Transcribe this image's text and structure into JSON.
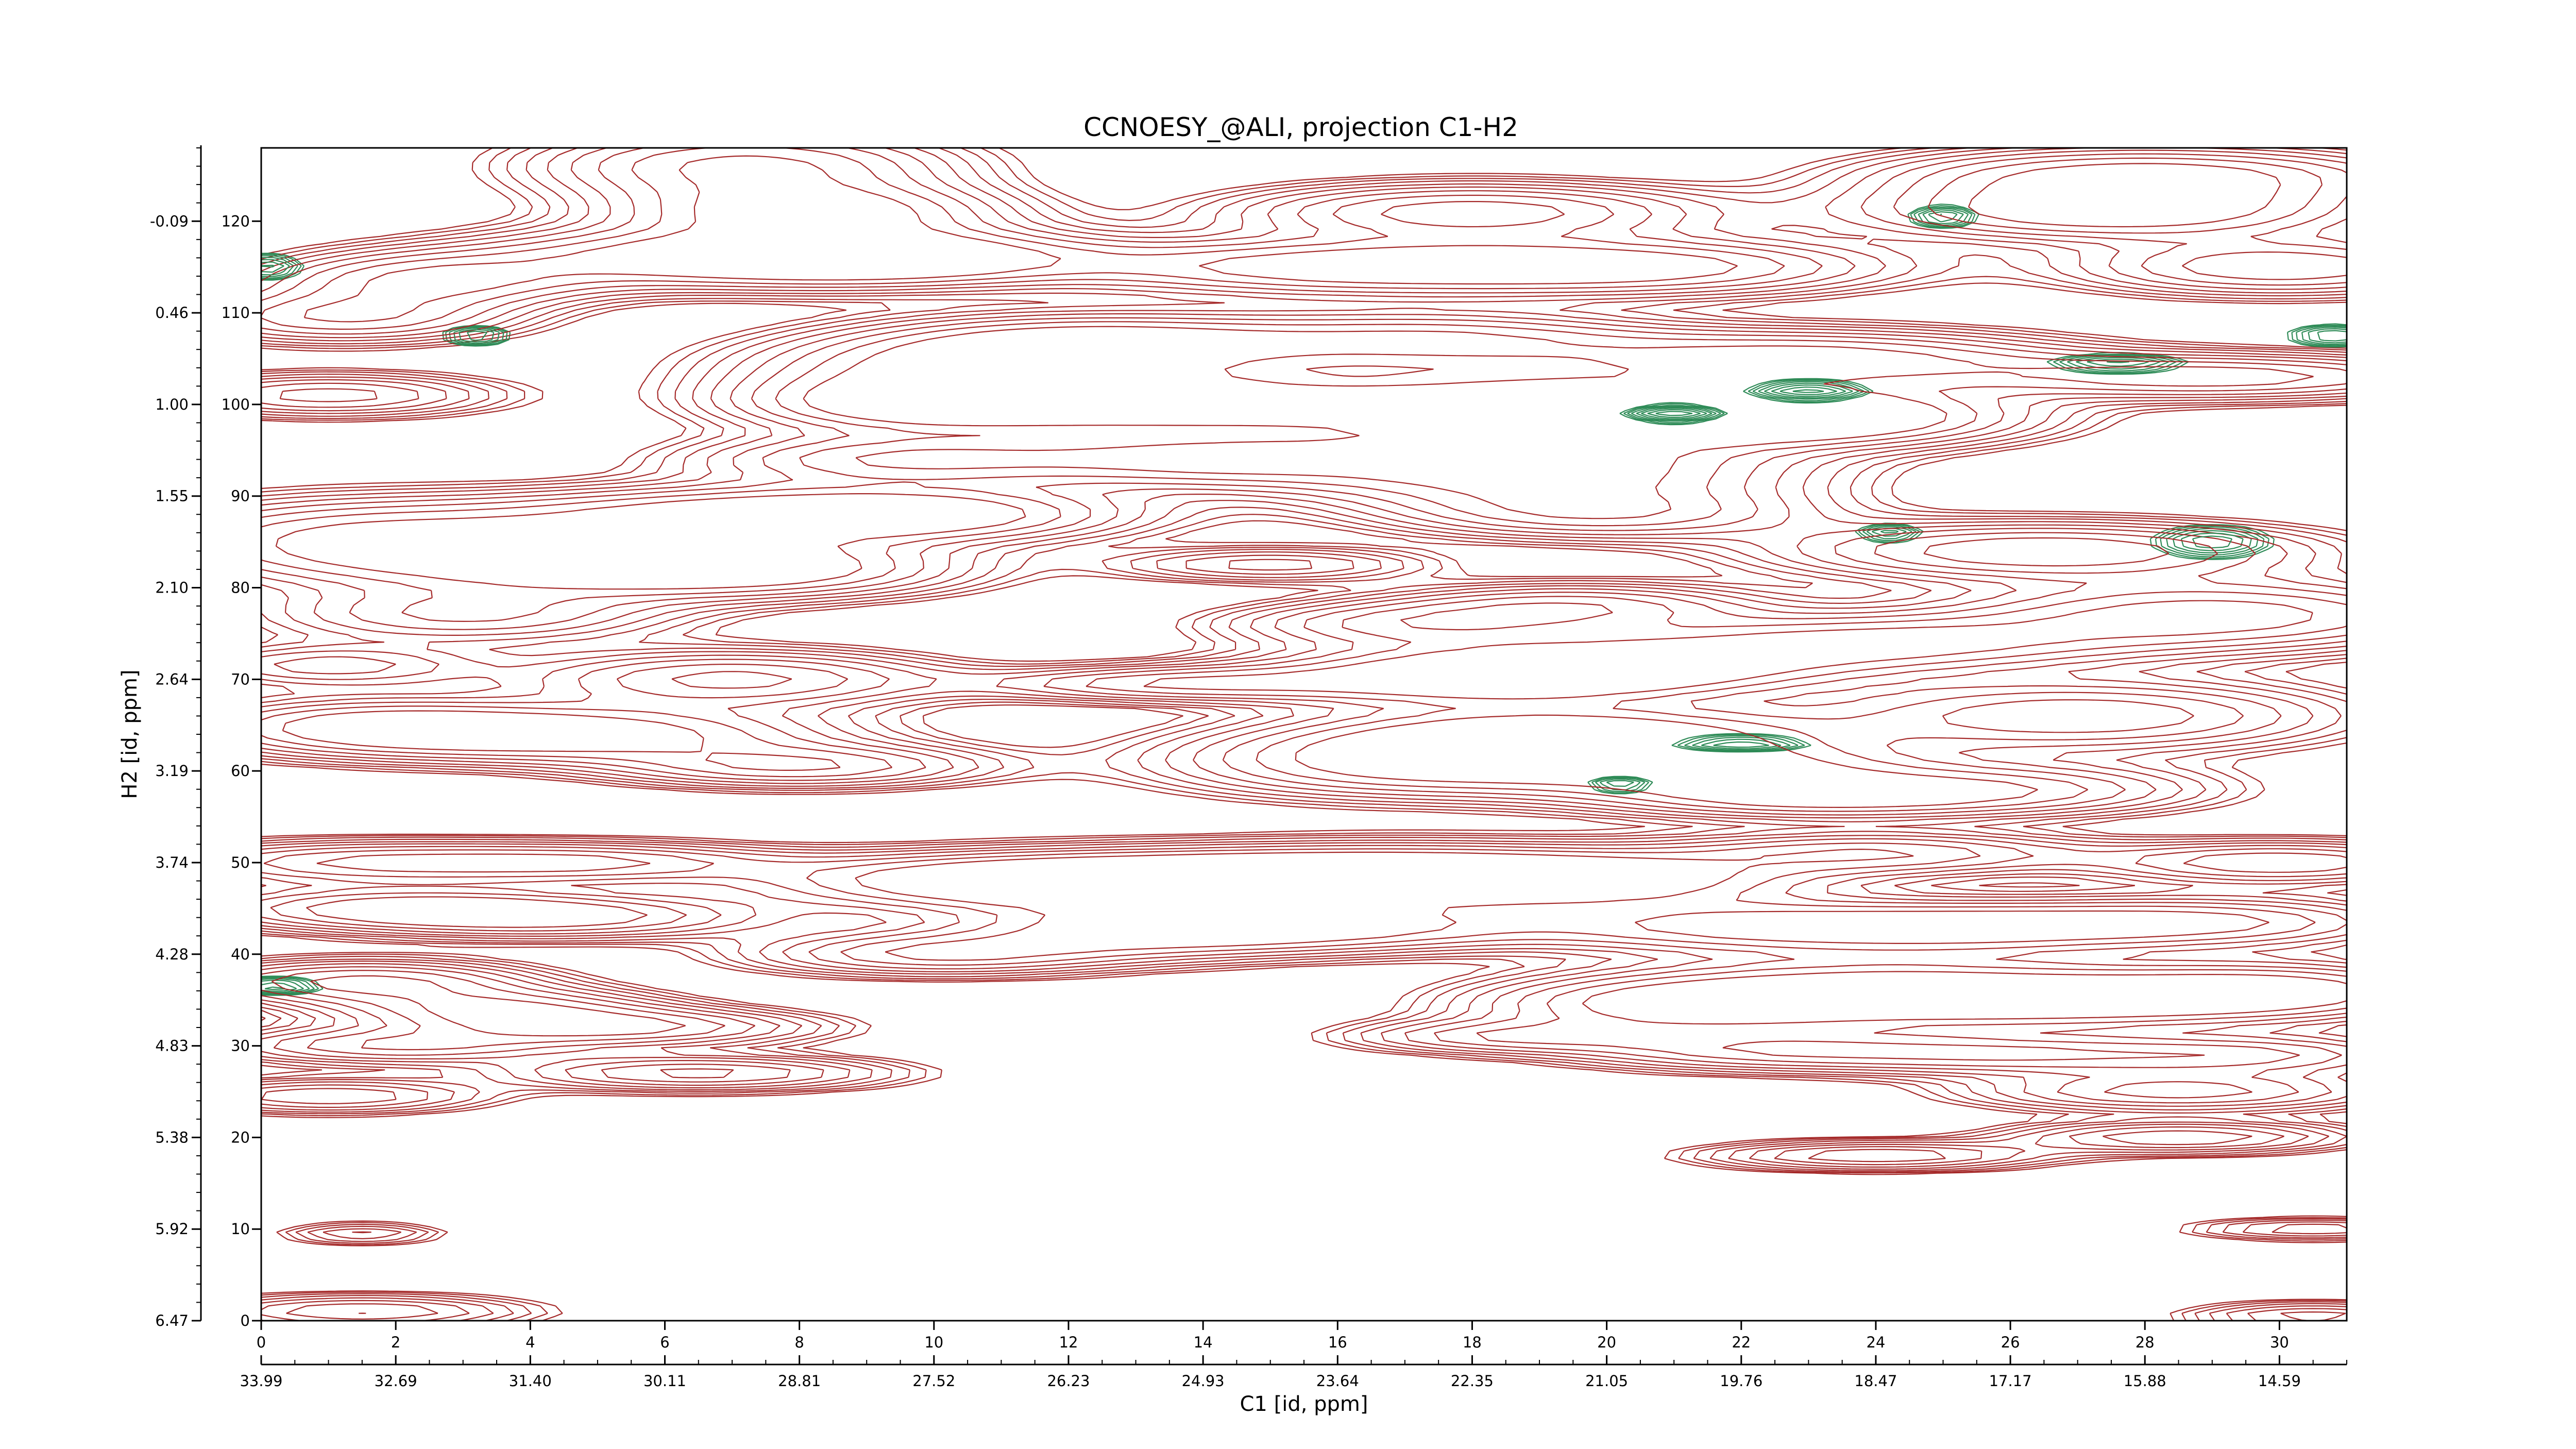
{
  "chart_data": {
    "type": "contour",
    "title": "CCNOESY_@ALI, projection C1-H2",
    "xlabel": "C1 [id, ppm]",
    "ylabel": "H2 [id, ppm]",
    "x_index_range": [
      0,
      31
    ],
    "y_index_range": [
      0,
      128
    ],
    "x_index_ticks": [
      "0",
      "2",
      "4",
      "6",
      "8",
      "10",
      "12",
      "14",
      "16",
      "18",
      "20",
      "22",
      "24",
      "26",
      "28",
      "30"
    ],
    "x_ppm_ticks": [
      "33.99",
      "32.69",
      "31.40",
      "30.11",
      "28.81",
      "27.52",
      "26.23",
      "24.93",
      "23.64",
      "22.35",
      "21.05",
      "19.76",
      "18.47",
      "17.17",
      "15.88",
      "14.59"
    ],
    "y_index_ticks": [
      "0",
      "10",
      "20",
      "30",
      "40",
      "50",
      "60",
      "70",
      "80",
      "90",
      "100",
      "110",
      "120"
    ],
    "y_ppm_ticks": [
      "6.47",
      "5.92",
      "5.38",
      "4.83",
      "4.28",
      "3.74",
      "3.19",
      "2.64",
      "2.10",
      "1.55",
      "1.00",
      "0.46",
      "-0.09"
    ],
    "colors": {
      "positive": "#a52a2a",
      "negative": "#2e8b57"
    },
    "levels": 9,
    "peaks": [
      {
        "x": 1.2,
        "y": 109.5,
        "sx": 1.6,
        "sy": 1.8,
        "sign": 1,
        "amp": 0.5
      },
      {
        "x": 2.5,
        "y": 113.5,
        "sx": 1.6,
        "sy": 2.0,
        "sign": 1,
        "amp": 0.5
      },
      {
        "x": 1.0,
        "y": 101.0,
        "sx": 1.6,
        "sy": 1.5,
        "sign": 1,
        "amp": 0.45
      },
      {
        "x": 7.2,
        "y": 126.0,
        "sx": 2.0,
        "sy": 2.6,
        "sign": 1,
        "amp": 0.55
      },
      {
        "x": 8.2,
        "y": 121.0,
        "sx": 1.8,
        "sy": 2.0,
        "sign": 1,
        "amp": 0.6
      },
      {
        "x": 6.8,
        "y": 116.0,
        "sx": 2.5,
        "sy": 2.2,
        "sign": 1,
        "amp": 0.6
      },
      {
        "x": 9.5,
        "y": 116.0,
        "sx": 2.0,
        "sy": 2.0,
        "sign": 1,
        "amp": 0.55
      },
      {
        "x": 9.7,
        "y": 100.0,
        "sx": 1.8,
        "sy": 2.0,
        "sign": 1,
        "amp": 0.55
      },
      {
        "x": 11.0,
        "y": 104.0,
        "sx": 2.4,
        "sy": 2.5,
        "sign": 1,
        "amp": 0.6
      },
      {
        "x": 13.5,
        "y": 100.0,
        "sx": 2.4,
        "sy": 2.0,
        "sign": 1,
        "amp": 0.6
      },
      {
        "x": 12.5,
        "y": 107.0,
        "sx": 2.2,
        "sy": 2.0,
        "sign": 1,
        "amp": 0.5
      },
      {
        "x": 14.0,
        "y": 94.0,
        "sx": 2.0,
        "sy": 2.0,
        "sign": 1,
        "amp": 0.5
      },
      {
        "x": 9.5,
        "y": 94.0,
        "sx": 2.0,
        "sy": 1.8,
        "sign": 1,
        "amp": 0.5
      },
      {
        "x": 7.0,
        "y": 88.0,
        "sx": 2.4,
        "sy": 2.0,
        "sign": 1,
        "amp": 0.55
      },
      {
        "x": 10.0,
        "y": 88.0,
        "sx": 2.0,
        "sy": 2.0,
        "sign": 1,
        "amp": 0.5
      },
      {
        "x": 5.0,
        "y": 83.0,
        "sx": 2.2,
        "sy": 2.5,
        "sign": 1,
        "amp": 0.55
      },
      {
        "x": 1.5,
        "y": 85.0,
        "sx": 2.2,
        "sy": 3.0,
        "sign": 1,
        "amp": 0.55
      },
      {
        "x": 7.5,
        "y": 82.0,
        "sx": 2.0,
        "sy": 2.0,
        "sign": 1,
        "amp": 0.5
      },
      {
        "x": 3.0,
        "y": 77.0,
        "sx": 2.0,
        "sy": 2.0,
        "sign": 1,
        "amp": 0.4
      },
      {
        "x": 18.0,
        "y": 121.0,
        "sx": 2.2,
        "sy": 2.0,
        "sign": 1,
        "amp": 0.6
      },
      {
        "x": 16.0,
        "y": 115.0,
        "sx": 2.6,
        "sy": 2.0,
        "sign": 1,
        "amp": 0.6
      },
      {
        "x": 20.5,
        "y": 115.0,
        "sx": 2.4,
        "sy": 2.0,
        "sign": 1,
        "amp": 0.55
      },
      {
        "x": 17.5,
        "y": 107.0,
        "sx": 2.2,
        "sy": 2.0,
        "sign": 1,
        "amp": 0.5
      },
      {
        "x": 18.5,
        "y": 100.0,
        "sx": 2.2,
        "sy": 2.5,
        "sign": 1,
        "amp": 0.55
      },
      {
        "x": 19.0,
        "y": 93.0,
        "sx": 2.5,
        "sy": 3.0,
        "sign": 1,
        "amp": 0.65
      },
      {
        "x": 23.0,
        "y": 105.0,
        "sx": 2.5,
        "sy": 2.0,
        "sign": 1,
        "amp": 0.6
      },
      {
        "x": 21.5,
        "y": 99.0,
        "sx": 2.0,
        "sy": 2.0,
        "sign": 1,
        "amp": 0.6
      },
      {
        "x": 23.5,
        "y": 98.5,
        "sx": 2.0,
        "sy": 2.0,
        "sign": 1,
        "amp": 0.5
      },
      {
        "x": 20.0,
        "y": 88.0,
        "sx": 2.0,
        "sy": 1.8,
        "sign": 1,
        "amp": 0.4
      },
      {
        "x": 28.0,
        "y": 125.0,
        "sx": 2.5,
        "sy": 2.0,
        "sign": 1,
        "amp": 0.6
      },
      {
        "x": 27.5,
        "y": 121.0,
        "sx": 2.4,
        "sy": 2.0,
        "sign": 1,
        "amp": 0.65
      },
      {
        "x": 30.0,
        "y": 115.0,
        "sx": 2.0,
        "sy": 2.0,
        "sign": 1,
        "amp": 0.5
      },
      {
        "x": 29.0,
        "y": 103.0,
        "sx": 2.5,
        "sy": 1.6,
        "sign": 1,
        "amp": 0.6
      },
      {
        "x": 26.5,
        "y": 84.0,
        "sx": 2.5,
        "sy": 2.0,
        "sign": 1,
        "amp": 0.65
      },
      {
        "x": 29.0,
        "y": 77.0,
        "sx": 2.5,
        "sy": 2.5,
        "sign": 1,
        "amp": 0.6
      },
      {
        "x": 24.0,
        "y": 74.0,
        "sx": 2.5,
        "sy": 2.0,
        "sign": 1,
        "amp": 0.55
      },
      {
        "x": 27.0,
        "y": 66.0,
        "sx": 2.5,
        "sy": 2.5,
        "sign": 1,
        "amp": 0.5
      },
      {
        "x": 26.0,
        "y": 58.0,
        "sx": 2.0,
        "sy": 1.8,
        "sign": 1,
        "amp": 0.4
      },
      {
        "x": 19.5,
        "y": 78.0,
        "sx": 1.8,
        "sy": 1.6,
        "sign": 1,
        "amp": 0.45
      },
      {
        "x": 17.0,
        "y": 76.0,
        "sx": 1.8,
        "sy": 1.6,
        "sign": 1,
        "amp": 0.4
      },
      {
        "x": 15.0,
        "y": 82.5,
        "sx": 1.5,
        "sy": 1.2,
        "sign": 1,
        "amp": 0.35
      },
      {
        "x": 18.0,
        "y": 70.0,
        "sx": 2.4,
        "sy": 2.0,
        "sign": 1,
        "amp": 0.55
      },
      {
        "x": 20.0,
        "y": 71.5,
        "sx": 2.4,
        "sy": 2.0,
        "sign": 1,
        "amp": 0.55
      },
      {
        "x": 19.5,
        "y": 64.0,
        "sx": 2.4,
        "sy": 2.0,
        "sign": 1,
        "amp": 0.6
      },
      {
        "x": 17.5,
        "y": 61.0,
        "sx": 2.5,
        "sy": 2.5,
        "sign": 1,
        "amp": 0.65
      },
      {
        "x": 22.0,
        "y": 60.0,
        "sx": 2.0,
        "sy": 2.0,
        "sign": 1,
        "amp": 0.45
      },
      {
        "x": 23.0,
        "y": 57.0,
        "sx": 2.0,
        "sy": 1.5,
        "sign": 1,
        "amp": 0.45
      },
      {
        "x": 13.5,
        "y": 69.5,
        "sx": 1.8,
        "sy": 1.2,
        "sign": 1,
        "amp": 0.45
      },
      {
        "x": 1.5,
        "y": 65.0,
        "sx": 1.8,
        "sy": 2.0,
        "sign": 1,
        "amp": 0.45
      },
      {
        "x": 4.5,
        "y": 64.0,
        "sx": 2.5,
        "sy": 2.0,
        "sign": 1,
        "amp": 0.65
      },
      {
        "x": 7.0,
        "y": 70.0,
        "sx": 2.0,
        "sy": 2.0,
        "sign": 1,
        "amp": 0.55
      },
      {
        "x": 8.0,
        "y": 60.5,
        "sx": 1.8,
        "sy": 1.5,
        "sign": 1,
        "amp": 0.5
      },
      {
        "x": 1.0,
        "y": 71.5,
        "sx": 1.5,
        "sy": 1.5,
        "sign": 1,
        "amp": 0.35
      },
      {
        "x": 1.5,
        "y": 50.0,
        "sx": 2.0,
        "sy": 1.5,
        "sign": 1,
        "amp": 0.5
      },
      {
        "x": 5.0,
        "y": 50.0,
        "sx": 1.8,
        "sy": 1.4,
        "sign": 1,
        "amp": 0.45
      },
      {
        "x": 2.0,
        "y": 45.0,
        "sx": 2.0,
        "sy": 1.5,
        "sign": 1,
        "amp": 0.55
      },
      {
        "x": 4.5,
        "y": 44.0,
        "sx": 2.0,
        "sy": 1.5,
        "sign": 1,
        "amp": 0.5
      },
      {
        "x": 11.0,
        "y": 48.0,
        "sx": 2.5,
        "sy": 2.0,
        "sign": 1,
        "amp": 0.6
      },
      {
        "x": 14.0,
        "y": 48.0,
        "sx": 2.5,
        "sy": 2.0,
        "sign": 1,
        "amp": 0.6
      },
      {
        "x": 17.0,
        "y": 49.0,
        "sx": 2.5,
        "sy": 2.0,
        "sign": 1,
        "amp": 0.6
      },
      {
        "x": 20.0,
        "y": 48.0,
        "sx": 2.2,
        "sy": 2.0,
        "sign": 1,
        "amp": 0.5
      },
      {
        "x": 10.0,
        "y": 40.0,
        "sx": 1.8,
        "sy": 1.5,
        "sign": 1,
        "amp": 0.5
      },
      {
        "x": 13.0,
        "y": 42.5,
        "sx": 2.0,
        "sy": 2.0,
        "sign": 1,
        "amp": 0.5
      },
      {
        "x": 16.0,
        "y": 43.0,
        "sx": 2.2,
        "sy": 1.8,
        "sign": 1,
        "amp": 0.5
      },
      {
        "x": 24.0,
        "y": 51.0,
        "sx": 2.0,
        "sy": 1.5,
        "sign": 1,
        "amp": 0.5
      },
      {
        "x": 22.0,
        "y": 43.0,
        "sx": 2.2,
        "sy": 1.8,
        "sign": 1,
        "amp": 0.5
      },
      {
        "x": 25.5,
        "y": 43.0,
        "sx": 2.0,
        "sy": 1.8,
        "sign": 1,
        "amp": 0.5
      },
      {
        "x": 29.0,
        "y": 43.5,
        "sx": 2.0,
        "sy": 1.8,
        "sign": 1,
        "amp": 0.5
      },
      {
        "x": 30.0,
        "y": 50.0,
        "sx": 1.8,
        "sy": 1.5,
        "sign": 1,
        "amp": 0.5
      },
      {
        "x": 24.0,
        "y": 36.0,
        "sx": 2.5,
        "sy": 2.5,
        "sign": 1,
        "amp": 0.55
      },
      {
        "x": 21.0,
        "y": 34.5,
        "sx": 2.0,
        "sy": 2.0,
        "sign": 1,
        "amp": 0.5
      },
      {
        "x": 27.0,
        "y": 35.0,
        "sx": 2.2,
        "sy": 2.0,
        "sign": 1,
        "amp": 0.5
      },
      {
        "x": 30.0,
        "y": 36.0,
        "sx": 1.8,
        "sy": 2.0,
        "sign": 1,
        "amp": 0.55
      },
      {
        "x": 22.5,
        "y": 29.5,
        "sx": 2.0,
        "sy": 1.5,
        "sign": 1,
        "amp": 0.45
      },
      {
        "x": 26.0,
        "y": 29.0,
        "sx": 1.8,
        "sy": 1.4,
        "sign": 1,
        "amp": 0.4
      },
      {
        "x": 29.5,
        "y": 29.0,
        "sx": 1.8,
        "sy": 1.4,
        "sign": 1,
        "amp": 0.4
      },
      {
        "x": 28.5,
        "y": 25.0,
        "sx": 2.0,
        "sy": 1.4,
        "sign": 1,
        "amp": 0.45
      },
      {
        "x": 18.5,
        "y": 31.0,
        "sx": 1.6,
        "sy": 1.2,
        "sign": 1,
        "amp": 0.35
      },
      {
        "x": 1.5,
        "y": 37.0,
        "sx": 1.6,
        "sy": 1.5,
        "sign": 1,
        "amp": 0.55
      },
      {
        "x": 3.5,
        "y": 34.0,
        "sx": 1.6,
        "sy": 1.5,
        "sign": 1,
        "amp": 0.5
      },
      {
        "x": 5.5,
        "y": 32.0,
        "sx": 1.8,
        "sy": 1.3,
        "sign": 1,
        "amp": 0.5
      },
      {
        "x": 2.0,
        "y": 30.0,
        "sx": 1.8,
        "sy": 1.3,
        "sign": 1,
        "amp": 0.4
      },
      {
        "x": 6.5,
        "y": 27.0,
        "sx": 1.8,
        "sy": 1.2,
        "sign": 1,
        "amp": 0.55
      },
      {
        "x": 1.0,
        "y": 24.5,
        "sx": 1.5,
        "sy": 1.2,
        "sign": 1,
        "amp": 0.4
      },
      {
        "x": 28.5,
        "y": 20.0,
        "sx": 1.6,
        "sy": 1.1,
        "sign": 1,
        "amp": 0.5
      },
      {
        "x": 24.0,
        "y": 18.0,
        "sx": 1.6,
        "sy": 1.0,
        "sign": 1,
        "amp": 0.5
      },
      {
        "x": 1.5,
        "y": 1.0,
        "sx": 1.6,
        "sy": 1.2,
        "sign": 1,
        "amp": 0.4
      },
      {
        "x": 30.5,
        "y": 0.5,
        "sx": 1.2,
        "sy": 1.0,
        "sign": 1,
        "amp": 0.35
      },
      {
        "x": 30.5,
        "y": 10.0,
        "sx": 1.2,
        "sy": 0.8,
        "sign": 1,
        "amp": 0.3
      },
      {
        "x": 1.5,
        "y": 9.5,
        "sx": 0.8,
        "sy": 0.8,
        "sign": 1,
        "amp": 0.25
      },
      {
        "x": 21.0,
        "y": 99.0,
        "sx": 0.4,
        "sy": 0.5,
        "sign": -1,
        "amp": 0.45
      },
      {
        "x": 23.0,
        "y": 101.5,
        "sx": 0.5,
        "sy": 0.6,
        "sign": -1,
        "amp": 0.4
      },
      {
        "x": 25.0,
        "y": 120.5,
        "sx": 0.3,
        "sy": 0.7,
        "sign": -1,
        "amp": 0.3
      },
      {
        "x": 29.0,
        "y": 85.0,
        "sx": 0.5,
        "sy": 1.0,
        "sign": -1,
        "amp": 0.35
      },
      {
        "x": 0.1,
        "y": 115.0,
        "sx": 0.3,
        "sy": 0.8,
        "sign": -1,
        "amp": 0.3
      },
      {
        "x": 3.2,
        "y": 107.5,
        "sx": 0.3,
        "sy": 0.6,
        "sign": -1,
        "amp": 0.3
      },
      {
        "x": 30.8,
        "y": 107.5,
        "sx": 0.4,
        "sy": 0.7,
        "sign": -1,
        "amp": 0.3
      },
      {
        "x": 27.6,
        "y": 104.5,
        "sx": 0.6,
        "sy": 0.6,
        "sign": -1,
        "amp": 0.3
      },
      {
        "x": 22.0,
        "y": 63.0,
        "sx": 0.6,
        "sy": 0.5,
        "sign": -1,
        "amp": 0.3
      },
      {
        "x": 20.2,
        "y": 58.5,
        "sx": 0.3,
        "sy": 0.5,
        "sign": -1,
        "amp": 0.25
      },
      {
        "x": 0.2,
        "y": 36.5,
        "sx": 0.4,
        "sy": 0.5,
        "sign": -1,
        "amp": 0.35
      },
      {
        "x": 24.2,
        "y": 86.0,
        "sx": 0.3,
        "sy": 0.6,
        "sign": -1,
        "amp": 0.25
      }
    ]
  }
}
